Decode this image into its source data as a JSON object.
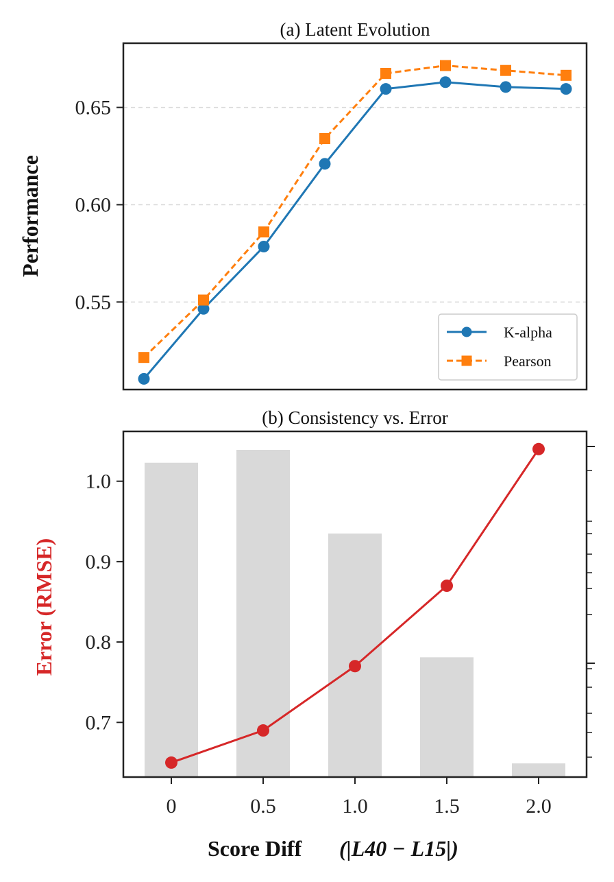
{
  "chart_data": [
    {
      "type": "line",
      "title": "(a) Latent Evolution",
      "ylabel": "Performance",
      "xlabel": "",
      "x": [
        1,
        2,
        3,
        4,
        5,
        6,
        7,
        8
      ],
      "ylim": [
        0.505,
        0.683
      ],
      "yticks": [
        0.55,
        0.6,
        0.65
      ],
      "ytick_labels": [
        "0.55",
        "0.60",
        "0.65"
      ],
      "grid": "horizontal dashed",
      "legend_position": "lower-right",
      "series": [
        {
          "name": "K-alpha",
          "color": "#1f77b4",
          "marker": "circle",
          "style": "solid",
          "values": [
            0.5105,
            0.5465,
            0.5785,
            0.621,
            0.6595,
            0.663,
            0.6605,
            0.6595
          ]
        },
        {
          "name": "Pearson",
          "color": "#ff7f0e",
          "marker": "square",
          "style": "dashed",
          "values": [
            0.5215,
            0.551,
            0.586,
            0.634,
            0.6675,
            0.6715,
            0.669,
            0.6665
          ]
        }
      ]
    },
    {
      "type": "bar+line",
      "title": "(b) Consistency vs. Error",
      "xlabel": "Score Diff",
      "xlabel_math": "(|L40 − L15|)",
      "ylabel": "Error (RMSE)",
      "ylabel_color": "#d62728",
      "categories": [
        "0",
        "0.5",
        "1.0",
        "1.5",
        "2.0"
      ],
      "ylim": [
        0.632,
        1.062
      ],
      "yticks": [
        0.7,
        0.8,
        0.9,
        1.0
      ],
      "ytick_labels": [
        "0.7",
        "0.8",
        "0.9",
        "1.0"
      ],
      "line": {
        "name": "Error (RMSE)",
        "color": "#d62728",
        "values": [
          0.65,
          0.69,
          0.77,
          0.87,
          1.04
        ]
      },
      "bars": {
        "name": "Consistency",
        "color": "#d9d9d9",
        "values": [
          1.023,
          1.039,
          0.935,
          0.781,
          0.649
        ]
      }
    }
  ]
}
